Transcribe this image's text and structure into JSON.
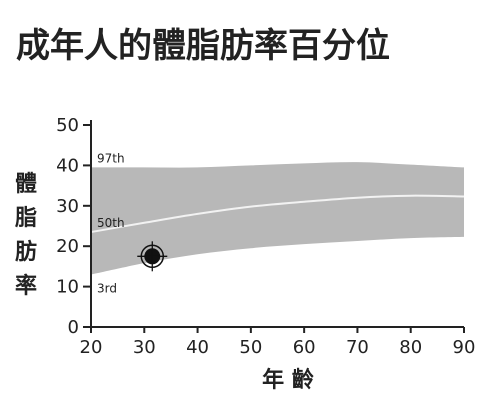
{
  "chart_data": {
    "type": "area",
    "title": "成年人的體脂肪率百分位",
    "xlabel": "年 齡",
    "ylabel_chars": [
      "體",
      "脂",
      "肪",
      "率"
    ],
    "xlim": [
      20,
      90
    ],
    "ylim": [
      0,
      50
    ],
    "x_ticks": [
      20,
      30,
      40,
      50,
      60,
      70,
      80,
      90
    ],
    "y_ticks": [
      0,
      10,
      20,
      30,
      40,
      50
    ],
    "series": [
      {
        "name": "97th",
        "x": [
          20,
          30,
          40,
          50,
          60,
          70,
          80,
          90
        ],
        "y": [
          39.5,
          39.5,
          39.5,
          40.0,
          40.5,
          40.8,
          40.2,
          39.5
        ]
      },
      {
        "name": "50th",
        "x": [
          20,
          30,
          40,
          50,
          60,
          70,
          80,
          90
        ],
        "y": [
          23.5,
          25.8,
          28.0,
          29.8,
          31.0,
          32.0,
          32.5,
          32.3
        ]
      },
      {
        "name": "3rd",
        "x": [
          20,
          30,
          40,
          50,
          60,
          70,
          80,
          90
        ],
        "y": [
          13.0,
          15.8,
          18.0,
          19.5,
          20.5,
          21.3,
          22.0,
          22.3
        ]
      }
    ],
    "marker": {
      "x": 31.5,
      "y": 17.5
    },
    "colors": {
      "band": "#b8b8b8",
      "median_line": "#f2f2f2",
      "axis": "#222222",
      "marker": "#111111"
    }
  }
}
